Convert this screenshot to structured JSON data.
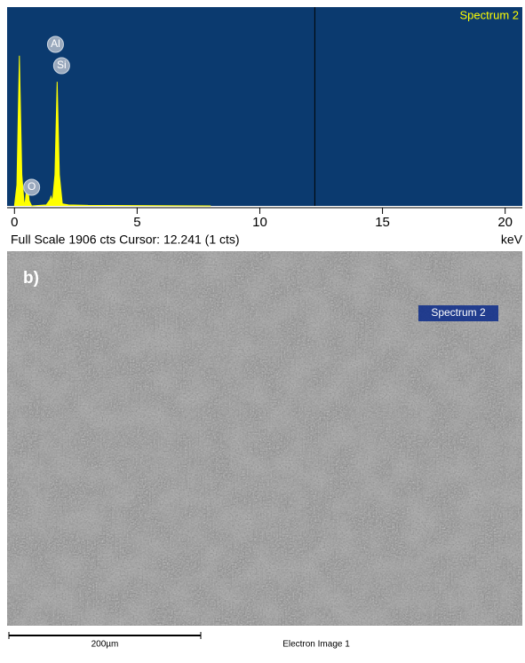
{
  "chart_data": {
    "type": "area",
    "title": "Spectrum 2",
    "x_label": "keV",
    "footer": "Full Scale 1906 cts Cursor: 12.241  (1 cts)",
    "x": [
      0,
      0.1,
      0.2,
      0.3,
      0.4,
      0.45,
      0.52,
      0.6,
      0.7,
      1.3,
      1.45,
      1.49,
      1.55,
      1.65,
      1.74,
      1.83,
      1.95,
      2.2,
      3,
      5,
      8
    ],
    "values": [
      0,
      200,
      1440,
      300,
      0,
      60,
      230,
      50,
      0,
      10,
      60,
      90,
      40,
      300,
      1190,
      300,
      20,
      10,
      5,
      3,
      0
    ],
    "color": "#ffff00",
    "background": "#0b3a6f",
    "xlim": [
      -0.3,
      20.7
    ],
    "ylim": [
      0,
      1906
    ],
    "xticks": [
      0,
      5,
      10,
      15,
      20
    ],
    "cursor": 12.241,
    "peaks": [
      {
        "label": "Al",
        "x": 1.49
      },
      {
        "label": "Si",
        "x": 1.74
      },
      {
        "label": "O",
        "x": 0.52
      }
    ]
  },
  "image": {
    "panel_label": "b)",
    "marker": "Spectrum 2",
    "scale_bar": "200µm",
    "caption": "Electron Image 1"
  }
}
